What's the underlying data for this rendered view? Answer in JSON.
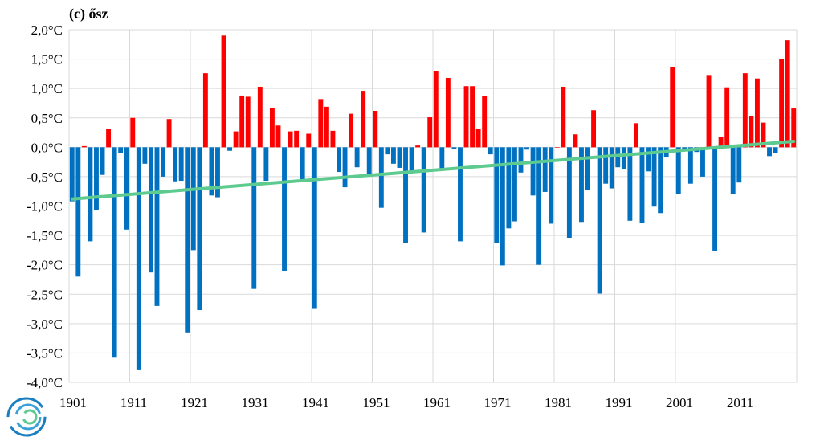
{
  "chart_data": {
    "type": "bar",
    "title": "(c) ősz",
    "xlabel": "",
    "ylabel": "",
    "ylim": [
      -4.0,
      2.0
    ],
    "y_ticks": [
      "2,0°C",
      "1,5°C",
      "1,0°C",
      "0,5°C",
      "0,0°C",
      "-0,5°C",
      "-1,0°C",
      "-1,5°C",
      "-2,0°C",
      "-2,5°C",
      "-3,0°C",
      "-3,5°C",
      "-4,0°C"
    ],
    "x_tick_labels": [
      "1901",
      "1911",
      "1921",
      "1931",
      "1941",
      "1951",
      "1961",
      "1971",
      "1981",
      "1991",
      "2001",
      "2011"
    ],
    "grid": true,
    "legend": "none",
    "colors": {
      "positive": "#ff0000",
      "negative": "#0070c0",
      "trend": "#5dcb8f"
    },
    "years_start": 1901,
    "values": [
      -0.92,
      -2.2,
      0.02,
      -1.6,
      -1.07,
      -0.47,
      0.31,
      -3.58,
      -0.1,
      -1.4,
      0.5,
      -3.78,
      -0.28,
      -2.13,
      -2.7,
      -0.5,
      0.48,
      -0.58,
      -0.57,
      -3.15,
      -1.75,
      -2.77,
      1.26,
      -0.82,
      -0.85,
      1.9,
      -0.06,
      0.27,
      0.88,
      0.86,
      -2.41,
      1.03,
      -0.57,
      0.67,
      0.37,
      -2.1,
      0.27,
      0.28,
      -0.58,
      0.23,
      -2.75,
      0.82,
      0.69,
      0.28,
      -0.42,
      -0.68,
      0.57,
      -0.34,
      0.96,
      -0.45,
      0.62,
      -1.03,
      -0.12,
      -0.28,
      -0.35,
      -1.63,
      -0.43,
      0.03,
      -1.45,
      0.51,
      1.3,
      -0.38,
      1.18,
      -0.03,
      -1.6,
      1.04,
      1.04,
      0.31,
      0.87,
      -0.12,
      -1.63,
      -2.01,
      -1.38,
      -1.26,
      -0.43,
      -0.04,
      -0.82,
      -2.0,
      -0.76,
      -1.3,
      0.0,
      1.03,
      -1.54,
      0.22,
      -1.27,
      -0.73,
      0.63,
      -2.49,
      -0.62,
      -0.7,
      -0.34,
      -0.37,
      -1.25,
      0.41,
      -1.29,
      -0.41,
      -1.01,
      -1.12,
      -0.16,
      1.36,
      -0.8,
      -0.03,
      -0.62,
      -0.08,
      -0.5,
      1.23,
      -1.76,
      0.17,
      1.02,
      -0.8,
      -0.6,
      1.26,
      0.53,
      1.17,
      0.42,
      -0.15,
      -0.1,
      1.5,
      1.82,
      0.66
    ],
    "trend": {
      "start_year": 1901,
      "start_value": -0.88,
      "end_year": 2020,
      "end_value": 0.1
    }
  },
  "logo": {
    "name": "hungarian-meteorological-service-logo-icon"
  }
}
